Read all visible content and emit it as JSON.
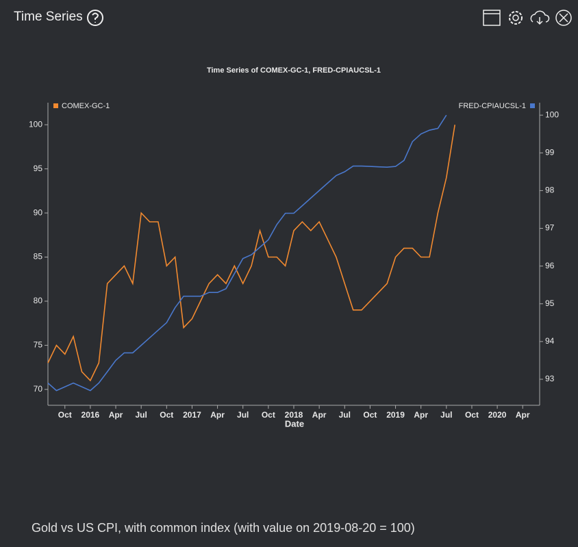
{
  "header": {
    "title": "Time Series"
  },
  "caption": "Gold vs US CPI, with common index (with value on 2019-08-20 = 100)",
  "chart_data": {
    "type": "line",
    "title": "Time Series of COMEX-GC-1, FRED-CPIAUCSL-1",
    "xlabel": "Date",
    "x": [
      "2015-08",
      "2015-09",
      "2015-10",
      "2015-11",
      "2015-12",
      "2016-01",
      "2016-02",
      "2016-03",
      "2016-04",
      "2016-05",
      "2016-06",
      "2016-07",
      "2016-08",
      "2016-09",
      "2016-10",
      "2016-11",
      "2016-12",
      "2017-01",
      "2017-02",
      "2017-03",
      "2017-04",
      "2017-05",
      "2017-06",
      "2017-07",
      "2017-08",
      "2017-09",
      "2017-10",
      "2017-11",
      "2017-12",
      "2018-01",
      "2018-02",
      "2018-03",
      "2018-04",
      "2018-05",
      "2018-06",
      "2018-07",
      "2018-08",
      "2018-09",
      "2018-10",
      "2018-11",
      "2018-12",
      "2019-01",
      "2019-02",
      "2019-03",
      "2019-04",
      "2019-05",
      "2019-06",
      "2019-07",
      "2019-08"
    ],
    "series": [
      {
        "name": "COMEX-GC-1",
        "color": "#f28a30",
        "values": [
          73,
          75,
          74,
          76,
          72,
          71,
          73,
          82,
          83,
          84,
          82,
          90,
          89,
          89,
          84,
          85,
          77,
          78,
          80,
          82,
          83,
          82,
          84,
          82,
          84,
          88,
          85,
          85,
          84,
          88,
          89,
          88,
          89,
          87,
          85,
          82,
          79,
          79,
          80,
          81,
          82,
          85,
          86,
          86,
          85,
          85,
          90,
          94,
          100
        ]
      },
      {
        "name": "FRED-CPIAUCSL-1",
        "color": "#4a78cc",
        "axis": "y2",
        "values": [
          92.9,
          92.7,
          92.8,
          92.9,
          92.8,
          92.7,
          92.9,
          93.2,
          93.5,
          93.7,
          93.7,
          93.9,
          94.1,
          94.3,
          94.5,
          94.9,
          95.2,
          95.2,
          95.2,
          95.3,
          95.3,
          95.4,
          95.8,
          96.2,
          96.3,
          96.5,
          96.7,
          97.1,
          97.4,
          97.4,
          97.6,
          97.8,
          98.0,
          98.2,
          98.4,
          98.5,
          98.65,
          98.65,
          98.64,
          98.63,
          98.62,
          98.64,
          98.8,
          99.3,
          99.5,
          99.6,
          99.65,
          100,
          null
        ]
      }
    ],
    "xlim": [
      "2015-08",
      "2020-06"
    ],
    "xticks": [
      {
        "value": "2015-10",
        "label": "Oct"
      },
      {
        "value": "2016-01",
        "label": "2016"
      },
      {
        "value": "2016-04",
        "label": "Apr"
      },
      {
        "value": "2016-07",
        "label": "Jul"
      },
      {
        "value": "2016-10",
        "label": "Oct"
      },
      {
        "value": "2017-01",
        "label": "2017"
      },
      {
        "value": "2017-04",
        "label": "Apr"
      },
      {
        "value": "2017-07",
        "label": "Jul"
      },
      {
        "value": "2017-10",
        "label": "Oct"
      },
      {
        "value": "2018-01",
        "label": "2018"
      },
      {
        "value": "2018-04",
        "label": "Apr"
      },
      {
        "value": "2018-07",
        "label": "Jul"
      },
      {
        "value": "2018-10",
        "label": "Oct"
      },
      {
        "value": "2019-01",
        "label": "2019"
      },
      {
        "value": "2019-04",
        "label": "Apr"
      },
      {
        "value": "2019-07",
        "label": "Jul"
      },
      {
        "value": "2019-10",
        "label": "Oct"
      },
      {
        "value": "2020-01",
        "label": "2020"
      },
      {
        "value": "2020-04",
        "label": "Apr"
      }
    ],
    "ylim": [
      68.2,
      102.5
    ],
    "yticks": [
      70,
      75,
      80,
      85,
      90,
      95,
      100
    ],
    "y2lim": [
      92.31,
      100.33
    ],
    "y2ticks": [
      93,
      94,
      95,
      96,
      97,
      98,
      99,
      100
    ],
    "grid": false
  }
}
